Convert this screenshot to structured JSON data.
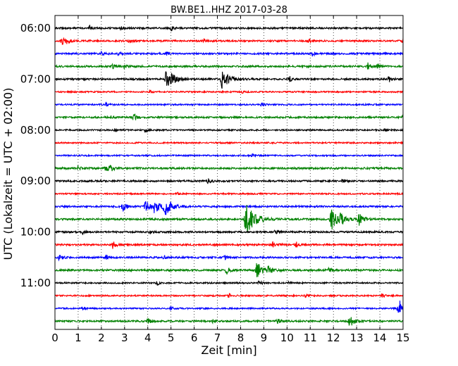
{
  "chart_data": {
    "type": "line",
    "title": "BW.BE1..HHZ 2017-03-28",
    "xlabel": "Zeit  [min]",
    "ylabel": "UTC (Lokalzeit = UTC + 02:00)",
    "xlim": [
      0,
      15
    ],
    "x_ticks": [
      "0",
      "1",
      "2",
      "3",
      "4",
      "5",
      "6",
      "7",
      "8",
      "9",
      "10",
      "11",
      "12",
      "13",
      "14",
      "15"
    ],
    "y_ticks": [
      {
        "label": "06:00",
        "trace": 0
      },
      {
        "label": "07:00",
        "trace": 4
      },
      {
        "label": "08:00",
        "trace": 8
      },
      {
        "label": "09:00",
        "trace": 12
      },
      {
        "label": "10:00",
        "trace": 16
      },
      {
        "label": "11:00",
        "trace": 20
      }
    ],
    "grid": "vertical dotted at each minute",
    "trace_interval_minutes": 15,
    "color_cycle": [
      "#000000",
      "#ff0000",
      "#0000ff",
      "#008000"
    ],
    "series": [
      {
        "start": "06:00",
        "noise": 1.2,
        "events": [
          [
            1.5,
            3
          ],
          [
            2.8,
            3
          ],
          [
            5.0,
            4
          ]
        ]
      },
      {
        "start": "06:15",
        "noise": 1.2,
        "events": [
          [
            0.3,
            5
          ],
          [
            0.5,
            4
          ],
          [
            3.2,
            3
          ],
          [
            6.4,
            3
          ],
          [
            10.9,
            3
          ],
          [
            15.0,
            5
          ]
        ]
      },
      {
        "start": "06:30",
        "noise": 1.2,
        "events": [
          [
            2.0,
            3
          ],
          [
            2.7,
            3
          ],
          [
            4.8,
            3
          ],
          [
            11.1,
            3
          ]
        ]
      },
      {
        "start": "06:45",
        "noise": 1.3,
        "events": [
          [
            2.5,
            3
          ],
          [
            3.0,
            3
          ],
          [
            13.5,
            5
          ],
          [
            13.9,
            3
          ]
        ]
      },
      {
        "start": "07:00",
        "noise": 1.2,
        "events": [
          [
            4.8,
            17
          ],
          [
            7.2,
            16
          ],
          [
            10.1,
            4
          ],
          [
            14.4,
            4
          ]
        ]
      },
      {
        "start": "07:15",
        "noise": 1.0,
        "events": [
          [
            4.1,
            2
          ],
          [
            8.1,
            2
          ]
        ]
      },
      {
        "start": "07:30",
        "noise": 1.0,
        "events": [
          [
            2.2,
            3
          ],
          [
            8.9,
            3
          ]
        ]
      },
      {
        "start": "07:45",
        "noise": 1.2,
        "events": [
          [
            3.4,
            5
          ],
          [
            2.4,
            2
          ],
          [
            15.0,
            4
          ]
        ]
      },
      {
        "start": "08:00",
        "noise": 1.0,
        "events": [
          [
            2.6,
            3
          ],
          [
            3.9,
            3
          ],
          [
            14.2,
            3
          ]
        ]
      },
      {
        "start": "08:15",
        "noise": 1.0,
        "events": [
          [
            7.5,
            2
          ]
        ]
      },
      {
        "start": "08:30",
        "noise": 1.0,
        "events": [
          [
            8.5,
            2
          ]
        ]
      },
      {
        "start": "08:45",
        "noise": 1.3,
        "events": [
          [
            1.0,
            4
          ],
          [
            2.2,
            5
          ],
          [
            2.4,
            4
          ]
        ]
      },
      {
        "start": "09:00",
        "noise": 1.2,
        "events": [
          [
            6.6,
            4
          ],
          [
            12.4,
            3
          ]
        ]
      },
      {
        "start": "09:15",
        "noise": 1.0,
        "events": [
          [
            5.3,
            2
          ]
        ]
      },
      {
        "start": "09:30",
        "noise": 1.2,
        "events": [
          [
            2.9,
            7
          ],
          [
            3.9,
            9
          ],
          [
            4.3,
            10
          ],
          [
            4.7,
            16
          ]
        ]
      },
      {
        "start": "09:45",
        "noise": 1.3,
        "events": [
          [
            8.2,
            24
          ],
          [
            11.9,
            16
          ],
          [
            12.3,
            8
          ],
          [
            13.1,
            9
          ]
        ]
      },
      {
        "start": "10:00",
        "noise": 1.2,
        "events": [
          [
            1.2,
            3
          ],
          [
            4.1,
            3
          ],
          [
            9.5,
            3
          ]
        ]
      },
      {
        "start": "10:15",
        "noise": 1.2,
        "events": [
          [
            2.5,
            5
          ],
          [
            9.4,
            5
          ],
          [
            10.4,
            4
          ]
        ]
      },
      {
        "start": "10:30",
        "noise": 1.2,
        "events": [
          [
            0.2,
            5
          ],
          [
            2.2,
            3
          ],
          [
            4.7,
            3
          ],
          [
            7.3,
            3
          ]
        ]
      },
      {
        "start": "10:45",
        "noise": 1.3,
        "events": [
          [
            7.4,
            6
          ],
          [
            8.7,
            12
          ],
          [
            9.2,
            6
          ],
          [
            11.8,
            4
          ]
        ]
      },
      {
        "start": "11:00",
        "noise": 1.0,
        "events": [
          [
            4.4,
            3
          ],
          [
            8.8,
            3
          ],
          [
            10.1,
            2
          ]
        ]
      },
      {
        "start": "11:15",
        "noise": 1.0,
        "events": [
          [
            7.5,
            3
          ],
          [
            10.8,
            2
          ],
          [
            14.1,
            3
          ]
        ]
      },
      {
        "start": "11:30",
        "noise": 1.0,
        "events": [
          [
            1.2,
            3
          ],
          [
            5.0,
            3
          ],
          [
            14.8,
            14
          ]
        ]
      },
      {
        "start": "11:45",
        "noise": 1.2,
        "events": [
          [
            4.0,
            4
          ],
          [
            9.6,
            5
          ],
          [
            12.7,
            9
          ],
          [
            6.8,
            2
          ]
        ]
      }
    ]
  }
}
